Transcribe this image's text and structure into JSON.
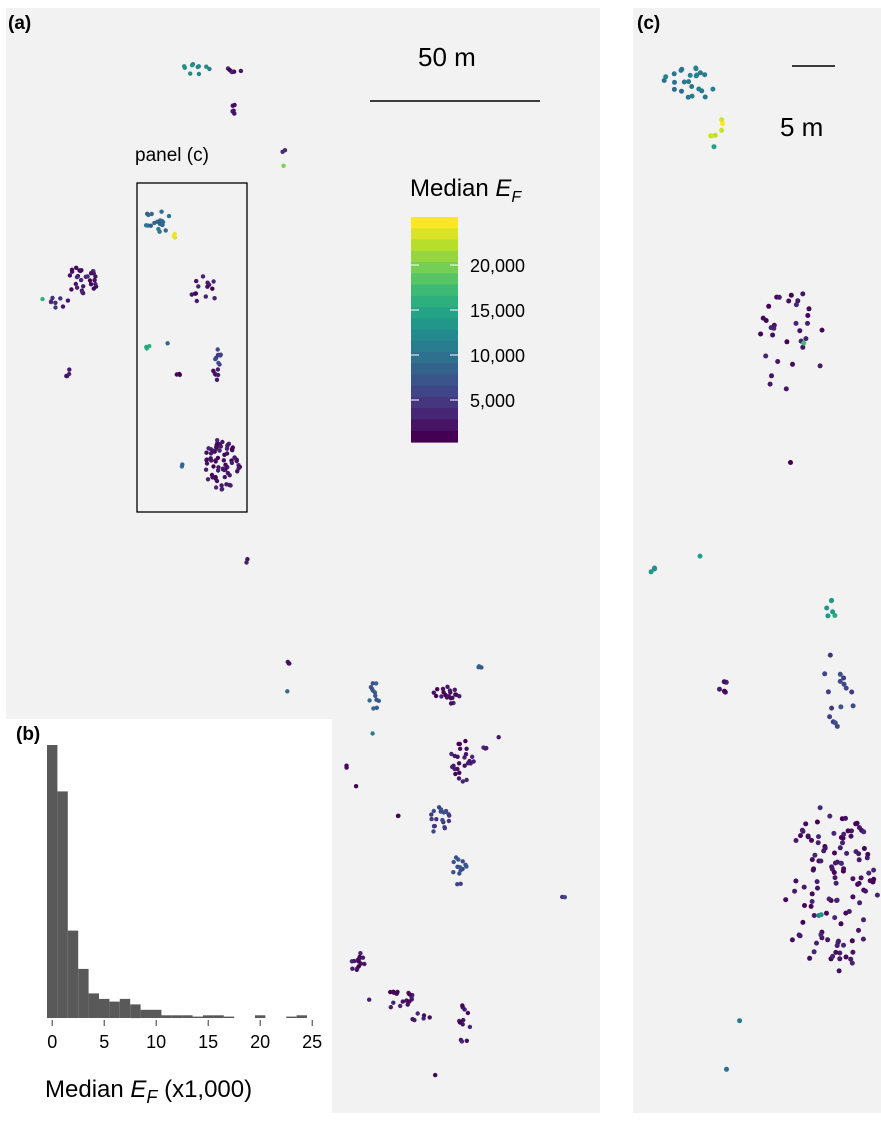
{
  "panel_labels": {
    "a": "(a)",
    "b": "(b)",
    "c": "(c)"
  },
  "panel_a": {
    "scalebar_label": "50 m",
    "inset_label": "panel (c)",
    "colorbar": {
      "title_main": "Median ",
      "title_italic": "E",
      "title_sub": "F",
      "ticks": [
        "20,000",
        "15,000",
        "10,000",
        "5,000"
      ],
      "palette": "viridis"
    }
  },
  "panel_c": {
    "scalebar_label": "5 m"
  },
  "colors": {
    "panel_bg": "#f2f2f2",
    "bar_fill": "#595959",
    "viridis_low": "#440154",
    "viridis_mid": "#21908d",
    "viridis_high": "#fde725"
  },
  "histogram_axis": {
    "xlabel_main": "Median ",
    "xlabel_italic": "E",
    "xlabel_sub": "F",
    "xlabel_tail": " (x1,000)"
  },
  "chart_data": [
    {
      "type": "bar",
      "panel": "(b)",
      "description_of_axes": "histogram of median EF in thousands",
      "bin_width": 1,
      "bin_starts": [
        0,
        1,
        2,
        3,
        4,
        5,
        6,
        7,
        8,
        9,
        10,
        11,
        12,
        13,
        14,
        15,
        16,
        17,
        18,
        19,
        20,
        21,
        22,
        23,
        24
      ],
      "values": [
        100,
        83,
        32,
        18,
        9,
        7,
        6,
        7,
        5,
        3,
        3,
        1,
        1,
        1,
        0.5,
        1,
        1,
        0.5,
        0,
        0,
        1,
        0,
        0,
        0.5,
        1
      ],
      "xticks": [
        "0",
        "5",
        "10",
        "15",
        "20",
        "25"
      ],
      "xlim": [
        -0.5,
        25.5
      ],
      "grid": false
    },
    {
      "type": "scatter",
      "panel": "(a)",
      "colorbar_range": [
        0,
        25000
      ],
      "colorbar_ticks": [
        20000,
        15000,
        10000,
        5000
      ]
    },
    {
      "type": "scatter",
      "panel": "(c)",
      "colorbar_range": [
        0,
        25000
      ]
    }
  ]
}
